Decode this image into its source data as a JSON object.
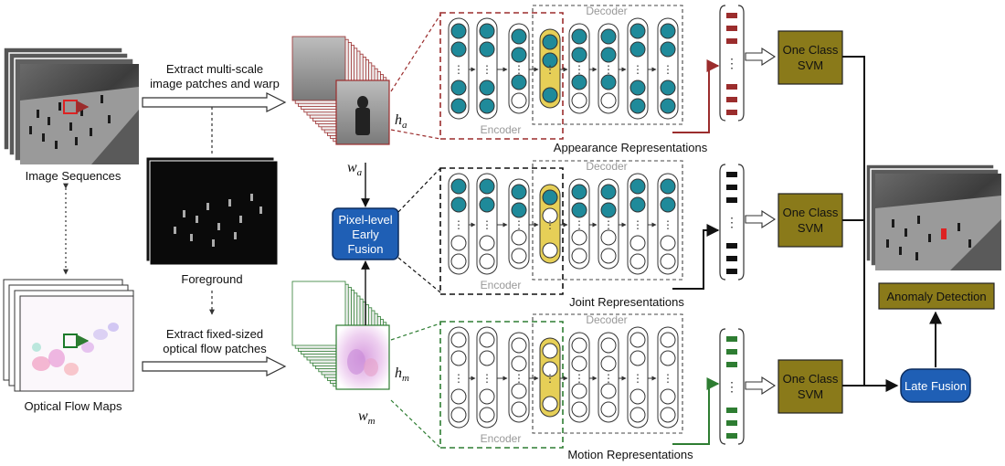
{
  "inputs": {
    "image_sequences": "Image Sequences",
    "optical_flow_maps": "Optical Flow Maps",
    "foreground": "Foreground"
  },
  "steps": {
    "extract_image_line1": "Extract multi-scale",
    "extract_image_line2": "image patches and warp",
    "extract_flow_line1": "Extract fixed-sized",
    "extract_flow_line2": "optical flow patches"
  },
  "patch_labels": {
    "ha": "h",
    "ha_sub": "a",
    "wa": "w",
    "wa_sub": "a",
    "hm": "h",
    "hm_sub": "m",
    "wm": "w",
    "wm_sub": "m"
  },
  "fusion": {
    "early_line1": "Pixel-level",
    "early_line2": "Early",
    "early_line3": "Fusion",
    "late": "Late Fusion"
  },
  "autoencoder": {
    "encoder": "Encoder",
    "decoder": "Decoder"
  },
  "representations": {
    "appearance": "Appearance Representations",
    "joint": "Joint  Representations",
    "motion": "Motion Representations"
  },
  "svm": {
    "line1": "One Class",
    "line2": "SVM"
  },
  "output": {
    "anomaly_detection": "Anomaly Detection"
  },
  "colors": {
    "appearance": "#9b2d2d",
    "joint": "#111111",
    "motion": "#2e7d32",
    "teal_node": "#1f8a9a",
    "yellow_node": "#e6cf57",
    "svm_box": "#8a7a1a",
    "fusion_blue": "#1f5fb5"
  }
}
